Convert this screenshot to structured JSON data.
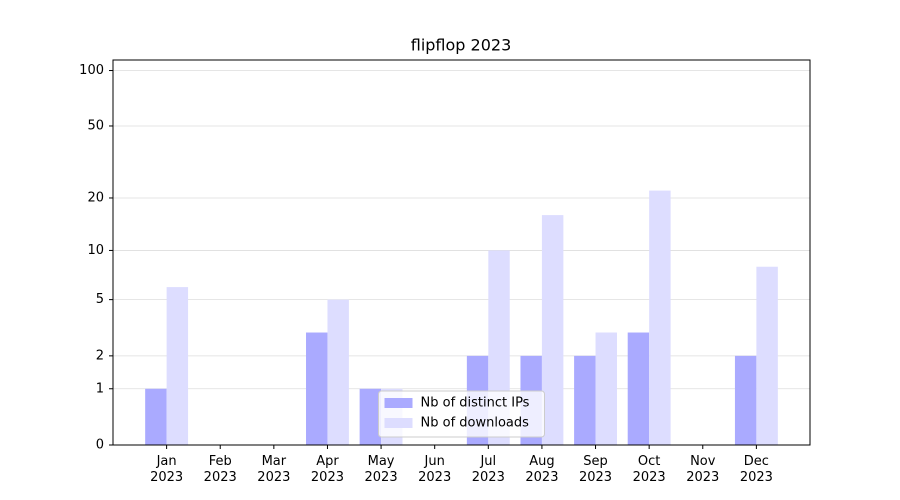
{
  "chart_data": {
    "type": "bar",
    "title": "flipflop 2023",
    "categories": [
      "Jan 2023",
      "Feb 2023",
      "Mar 2023",
      "Apr 2023",
      "May 2023",
      "Jun 2023",
      "Jul 2023",
      "Aug 2023",
      "Sep 2023",
      "Oct 2023",
      "Nov 2023",
      "Dec 2023"
    ],
    "series": [
      {
        "name": "Nb of distinct IPs",
        "color": "#aaaaff",
        "values": [
          1,
          0,
          0,
          3,
          1,
          0,
          2,
          2,
          2,
          3,
          0,
          2
        ]
      },
      {
        "name": "Nb of downloads",
        "color": "#ddddff",
        "values": [
          6,
          0,
          0,
          5,
          1,
          0,
          10,
          16,
          3,
          22,
          0,
          8
        ]
      }
    ],
    "yscale": "log1p",
    "ylim": [
      0,
      114
    ],
    "yticks": [
      0,
      1,
      2,
      5,
      10,
      20,
      50,
      100
    ],
    "grid": true,
    "legend": "lower center"
  }
}
